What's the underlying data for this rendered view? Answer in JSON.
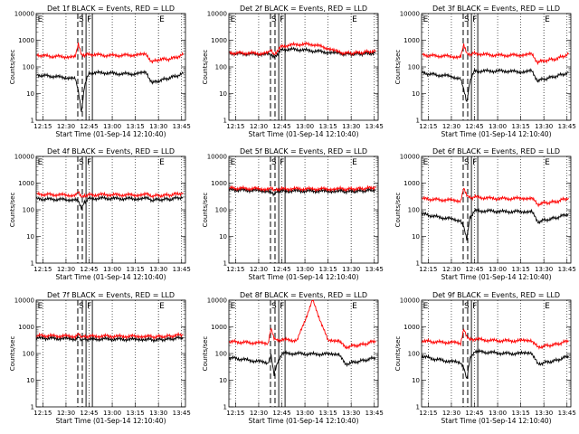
{
  "chart_data": [
    {
      "type": "line",
      "title": "Det 1f BLACK = Events, RED = LLD",
      "xlabel": "Start Time (01-Sep-14 12:10:40)",
      "ylabel": "Counts/sec",
      "y_scale": "log",
      "ylim": [
        1,
        10000
      ],
      "xlim": [
        "12:10:40",
        "13:47:30"
      ],
      "x_ticks": [
        "12:15",
        "12:30",
        "12:45",
        "13:00",
        "13:15",
        "13:30",
        "13:45"
      ],
      "y_ticks": [
        "1",
        "10",
        "100",
        "1000",
        "10000"
      ],
      "markers": {
        "E_left": "12:11",
        "S": "12:40",
        "F": "12:43",
        "E_right": "13:30"
      },
      "x": [
        "12:11",
        "12:20",
        "12:30",
        "12:36",
        "12:38",
        "12:40",
        "12:42",
        "12:45",
        "12:55",
        "13:05",
        "13:15",
        "13:22",
        "13:26",
        "13:30",
        "13:38",
        "13:46"
      ],
      "series": [
        {
          "name": "BLACK = Events",
          "color": "#000000",
          "values": [
            50,
            45,
            40,
            35,
            12,
            2,
            20,
            60,
            60,
            55,
            55,
            60,
            25,
            30,
            40,
            55
          ]
        },
        {
          "name": "RED = LLD",
          "color": "#ff0000",
          "values": [
            280,
            250,
            240,
            230,
            700,
            300,
            280,
            300,
            270,
            270,
            280,
            290,
            150,
            190,
            200,
            280
          ]
        }
      ]
    },
    {
      "type": "line",
      "title": "Det 2f BLACK = Events, RED = LLD",
      "xlabel": "Start Time (01-Sep-14 12:10:40)",
      "ylabel": "Counts/sec",
      "y_scale": "log",
      "ylim": [
        1,
        10000
      ],
      "xlim": [
        "12:10:40",
        "13:47:30"
      ],
      "x_ticks": [
        "12:15",
        "12:30",
        "12:45",
        "13:00",
        "13:15",
        "13:30",
        "13:45"
      ],
      "y_ticks": [
        "1",
        "10",
        "100",
        "1000",
        "10000"
      ],
      "markers": {
        "E_left": "12:11",
        "S": "12:40",
        "F": "12:43",
        "E_right": "13:30"
      },
      "x": [
        "12:11",
        "12:20",
        "12:30",
        "12:36",
        "12:38",
        "12:40",
        "12:42",
        "12:45",
        "12:55",
        "13:05",
        "13:15",
        "13:22",
        "13:26",
        "13:30",
        "13:38",
        "13:46"
      ],
      "series": [
        {
          "name": "BLACK = Events",
          "color": "#000000",
          "values": [
            320,
            310,
            300,
            300,
            280,
            250,
            300,
            450,
            450,
            400,
            350,
            320,
            300,
            300,
            310,
            330
          ]
        },
        {
          "name": "RED = LLD",
          "color": "#ff0000",
          "values": [
            330,
            330,
            320,
            330,
            420,
            300,
            400,
            600,
            700,
            700,
            500,
            350,
            330,
            330,
            350,
            400
          ]
        }
      ]
    },
    {
      "type": "line",
      "title": "Det 3f BLACK = Events, RED = LLD",
      "xlabel": "Start Time (01-Sep-14 12:10:40)",
      "ylabel": "Counts/sec",
      "y_scale": "log",
      "ylim": [
        1,
        10000
      ],
      "xlim": [
        "12:10:40",
        "13:47:30"
      ],
      "x_ticks": [
        "12:15",
        "12:30",
        "12:45",
        "13:00",
        "13:15",
        "13:30",
        "13:45"
      ],
      "y_ticks": [
        "1",
        "10",
        "100",
        "1000",
        "10000"
      ],
      "markers": {
        "E_left": "12:11",
        "S": "12:40",
        "F": "12:43",
        "E_right": "13:30"
      },
      "x": [
        "12:11",
        "12:20",
        "12:30",
        "12:36",
        "12:38",
        "12:40",
        "12:42",
        "12:45",
        "12:55",
        "13:05",
        "13:15",
        "13:22",
        "13:26",
        "13:30",
        "13:38",
        "13:46"
      ],
      "series": [
        {
          "name": "BLACK = Events",
          "color": "#000000",
          "values": [
            60,
            50,
            45,
            35,
            15,
            5,
            30,
            70,
            70,
            70,
            65,
            70,
            30,
            35,
            45,
            60
          ]
        },
        {
          "name": "RED = LLD",
          "color": "#ff0000",
          "values": [
            280,
            260,
            250,
            230,
            700,
            350,
            300,
            320,
            280,
            270,
            280,
            300,
            150,
            170,
            200,
            300
          ]
        }
      ]
    },
    {
      "type": "line",
      "title": "Det 4f BLACK = Events, RED = LLD",
      "xlabel": "Start Time (01-Sep-14 12:10:40)",
      "ylabel": "Counts/sec",
      "y_scale": "log",
      "ylim": [
        1,
        10000
      ],
      "xlim": [
        "12:10:40",
        "13:47:30"
      ],
      "x_ticks": [
        "12:15",
        "12:30",
        "12:45",
        "13:00",
        "13:15",
        "13:30",
        "13:45"
      ],
      "y_ticks": [
        "1",
        "10",
        "100",
        "1000",
        "10000"
      ],
      "markers": {
        "E_left": "12:11",
        "S": "12:40",
        "F": "12:43",
        "E_right": "13:30"
      },
      "x": [
        "12:11",
        "12:20",
        "12:30",
        "12:36",
        "12:38",
        "12:40",
        "12:42",
        "12:45",
        "12:55",
        "13:05",
        "13:15",
        "13:22",
        "13:26",
        "13:30",
        "13:38",
        "13:46"
      ],
      "series": [
        {
          "name": "BLACK = Events",
          "color": "#000000",
          "values": [
            250,
            250,
            240,
            240,
            230,
            120,
            200,
            260,
            270,
            260,
            260,
            270,
            230,
            240,
            250,
            300
          ]
        },
        {
          "name": "RED = LLD",
          "color": "#ff0000",
          "values": [
            380,
            370,
            360,
            350,
            500,
            330,
            340,
            360,
            370,
            360,
            360,
            380,
            330,
            340,
            360,
            430
          ]
        }
      ]
    },
    {
      "type": "line",
      "title": "Det 5f BLACK = Events, RED = LLD",
      "xlabel": "Start Time (01-Sep-14 12:10:40)",
      "ylabel": "Counts/sec",
      "y_scale": "log",
      "ylim": [
        1,
        10000
      ],
      "xlim": [
        "12:10:40",
        "13:47:30"
      ],
      "x_ticks": [
        "12:15",
        "12:30",
        "12:45",
        "13:00",
        "13:15",
        "13:30",
        "13:45"
      ],
      "y_ticks": [
        "1",
        "10",
        "100",
        "1000",
        "10000"
      ],
      "markers": {
        "E_left": "12:11",
        "S": "12:40",
        "F": "12:43",
        "E_right": "13:30"
      },
      "x": [
        "12:11",
        "12:20",
        "12:30",
        "12:36",
        "12:38",
        "12:40",
        "12:42",
        "12:45",
        "12:55",
        "13:05",
        "13:15",
        "13:22",
        "13:26",
        "13:30",
        "13:38",
        "13:46"
      ],
      "series": [
        {
          "name": "BLACK = Events",
          "color": "#000000",
          "values": [
            560,
            540,
            520,
            510,
            500,
            380,
            480,
            500,
            510,
            500,
            500,
            510,
            480,
            490,
            510,
            560
          ]
        },
        {
          "name": "RED = LLD",
          "color": "#ff0000",
          "values": [
            650,
            630,
            610,
            600,
            720,
            560,
            580,
            600,
            610,
            600,
            600,
            620,
            590,
            600,
            620,
            700
          ]
        }
      ]
    },
    {
      "type": "line",
      "title": "Det 6f BLACK = Events, RED = LLD",
      "xlabel": "Start Time (01-Sep-14 12:10:40)",
      "ylabel": "Counts/sec",
      "y_scale": "log",
      "ylim": [
        1,
        10000
      ],
      "xlim": [
        "12:10:40",
        "13:47:30"
      ],
      "x_ticks": [
        "12:15",
        "12:30",
        "12:45",
        "13:00",
        "13:15",
        "13:30",
        "13:45"
      ],
      "y_ticks": [
        "1",
        "10",
        "100",
        "1000",
        "10000"
      ],
      "markers": {
        "E_left": "12:11",
        "S": "12:40",
        "F": "12:43",
        "E_right": "13:30"
      },
      "x": [
        "12:11",
        "12:20",
        "12:30",
        "12:36",
        "12:38",
        "12:40",
        "12:42",
        "12:45",
        "12:55",
        "13:05",
        "13:15",
        "13:22",
        "13:26",
        "13:30",
        "13:38",
        "13:46"
      ],
      "series": [
        {
          "name": "BLACK = Events",
          "color": "#000000",
          "values": [
            70,
            55,
            45,
            40,
            25,
            8,
            50,
            90,
            90,
            85,
            85,
            90,
            35,
            40,
            50,
            70
          ]
        },
        {
          "name": "RED = LLD",
          "color": "#ff0000",
          "values": [
            260,
            240,
            230,
            220,
            700,
            350,
            280,
            300,
            270,
            260,
            270,
            280,
            160,
            180,
            200,
            280
          ]
        }
      ]
    },
    {
      "type": "line",
      "title": "Det 7f BLACK = Events, RED = LLD",
      "xlabel": "Start Time (01-Sep-14 12:10:40)",
      "ylabel": "Counts/sec",
      "y_scale": "log",
      "ylim": [
        1,
        10000
      ],
      "xlim": [
        "12:10:40",
        "13:47:30"
      ],
      "x_ticks": [
        "12:15",
        "12:30",
        "12:45",
        "13:00",
        "13:15",
        "13:30",
        "13:45"
      ],
      "y_ticks": [
        "1",
        "10",
        "100",
        "1000",
        "10000"
      ],
      "markers": {
        "E_left": "12:11",
        "S": "12:40",
        "F": "12:43",
        "E_right": "13:30"
      },
      "x": [
        "12:11",
        "12:20",
        "12:30",
        "12:36",
        "12:38",
        "12:40",
        "12:42",
        "12:45",
        "12:55",
        "13:05",
        "13:15",
        "13:22",
        "13:26",
        "13:30",
        "13:38",
        "13:46"
      ],
      "series": [
        {
          "name": "BLACK = Events",
          "color": "#000000",
          "values": [
            380,
            370,
            360,
            350,
            450,
            300,
            330,
            340,
            350,
            340,
            340,
            350,
            320,
            330,
            350,
            400
          ]
        },
        {
          "name": "RED = LLD",
          "color": "#ff0000",
          "values": [
            470,
            460,
            450,
            440,
            600,
            400,
            420,
            440,
            450,
            440,
            440,
            460,
            420,
            430,
            450,
            520
          ]
        }
      ]
    },
    {
      "type": "line",
      "title": "Det 8f BLACK = Events, RED = LLD",
      "xlabel": "Start Time (01-Sep-14 12:10:40)",
      "ylabel": "Counts/sec",
      "y_scale": "log",
      "ylim": [
        1,
        10000
      ],
      "xlim": [
        "12:10:40",
        "13:47:30"
      ],
      "x_ticks": [
        "12:15",
        "12:30",
        "12:45",
        "13:00",
        "13:15",
        "13:30",
        "13:45"
      ],
      "y_ticks": [
        "1",
        "10",
        "100",
        "1000",
        "10000"
      ],
      "markers": {
        "E_left": "12:11",
        "S": "12:40",
        "F": "12:43",
        "E_right": "13:30"
      },
      "x": [
        "12:11",
        "12:20",
        "12:30",
        "12:36",
        "12:38",
        "12:40",
        "12:42",
        "12:45",
        "12:55",
        "13:05",
        "13:15",
        "13:22",
        "13:26",
        "13:30",
        "13:38",
        "13:46"
      ],
      "series": [
        {
          "name": "BLACK = Events",
          "color": "#000000",
          "values": [
            70,
            60,
            50,
            45,
            90,
            15,
            40,
            100,
            100,
            95,
            95,
            100,
            40,
            45,
            55,
            70
          ]
        },
        {
          "name": "RED = LLD",
          "color": "#ff0000",
          "values": [
            280,
            260,
            250,
            240,
            900,
            350,
            300,
            330,
            310,
            10000,
            300,
            320,
            170,
            190,
            220,
            300
          ]
        }
      ]
    },
    {
      "type": "line",
      "title": "Det 9f BLACK = Events, RED = LLD",
      "xlabel": "Start Time (01-Sep-14 12:10:40)",
      "ylabel": "Counts/sec",
      "y_scale": "log",
      "ylim": [
        1,
        10000
      ],
      "xlim": [
        "12:10:40",
        "13:47:30"
      ],
      "x_ticks": [
        "12:15",
        "12:30",
        "12:45",
        "13:00",
        "13:15",
        "13:30",
        "13:45"
      ],
      "y_ticks": [
        "1",
        "10",
        "100",
        "1000",
        "10000"
      ],
      "markers": {
        "E_left": "12:11",
        "S": "12:40",
        "F": "12:43",
        "E_right": "13:30"
      },
      "x": [
        "12:11",
        "12:20",
        "12:30",
        "12:36",
        "12:38",
        "12:40",
        "12:42",
        "12:45",
        "12:55",
        "13:05",
        "13:15",
        "13:22",
        "13:26",
        "13:30",
        "13:38",
        "13:46"
      ],
      "series": [
        {
          "name": "BLACK = Events",
          "color": "#000000",
          "values": [
            80,
            60,
            50,
            45,
            30,
            10,
            60,
            120,
            110,
            100,
            100,
            110,
            40,
            45,
            55,
            80
          ]
        },
        {
          "name": "RED = LLD",
          "color": "#ff0000",
          "values": [
            300,
            270,
            260,
            240,
            800,
            400,
            320,
            350,
            310,
            300,
            300,
            320,
            170,
            190,
            220,
            300
          ]
        }
      ]
    }
  ]
}
